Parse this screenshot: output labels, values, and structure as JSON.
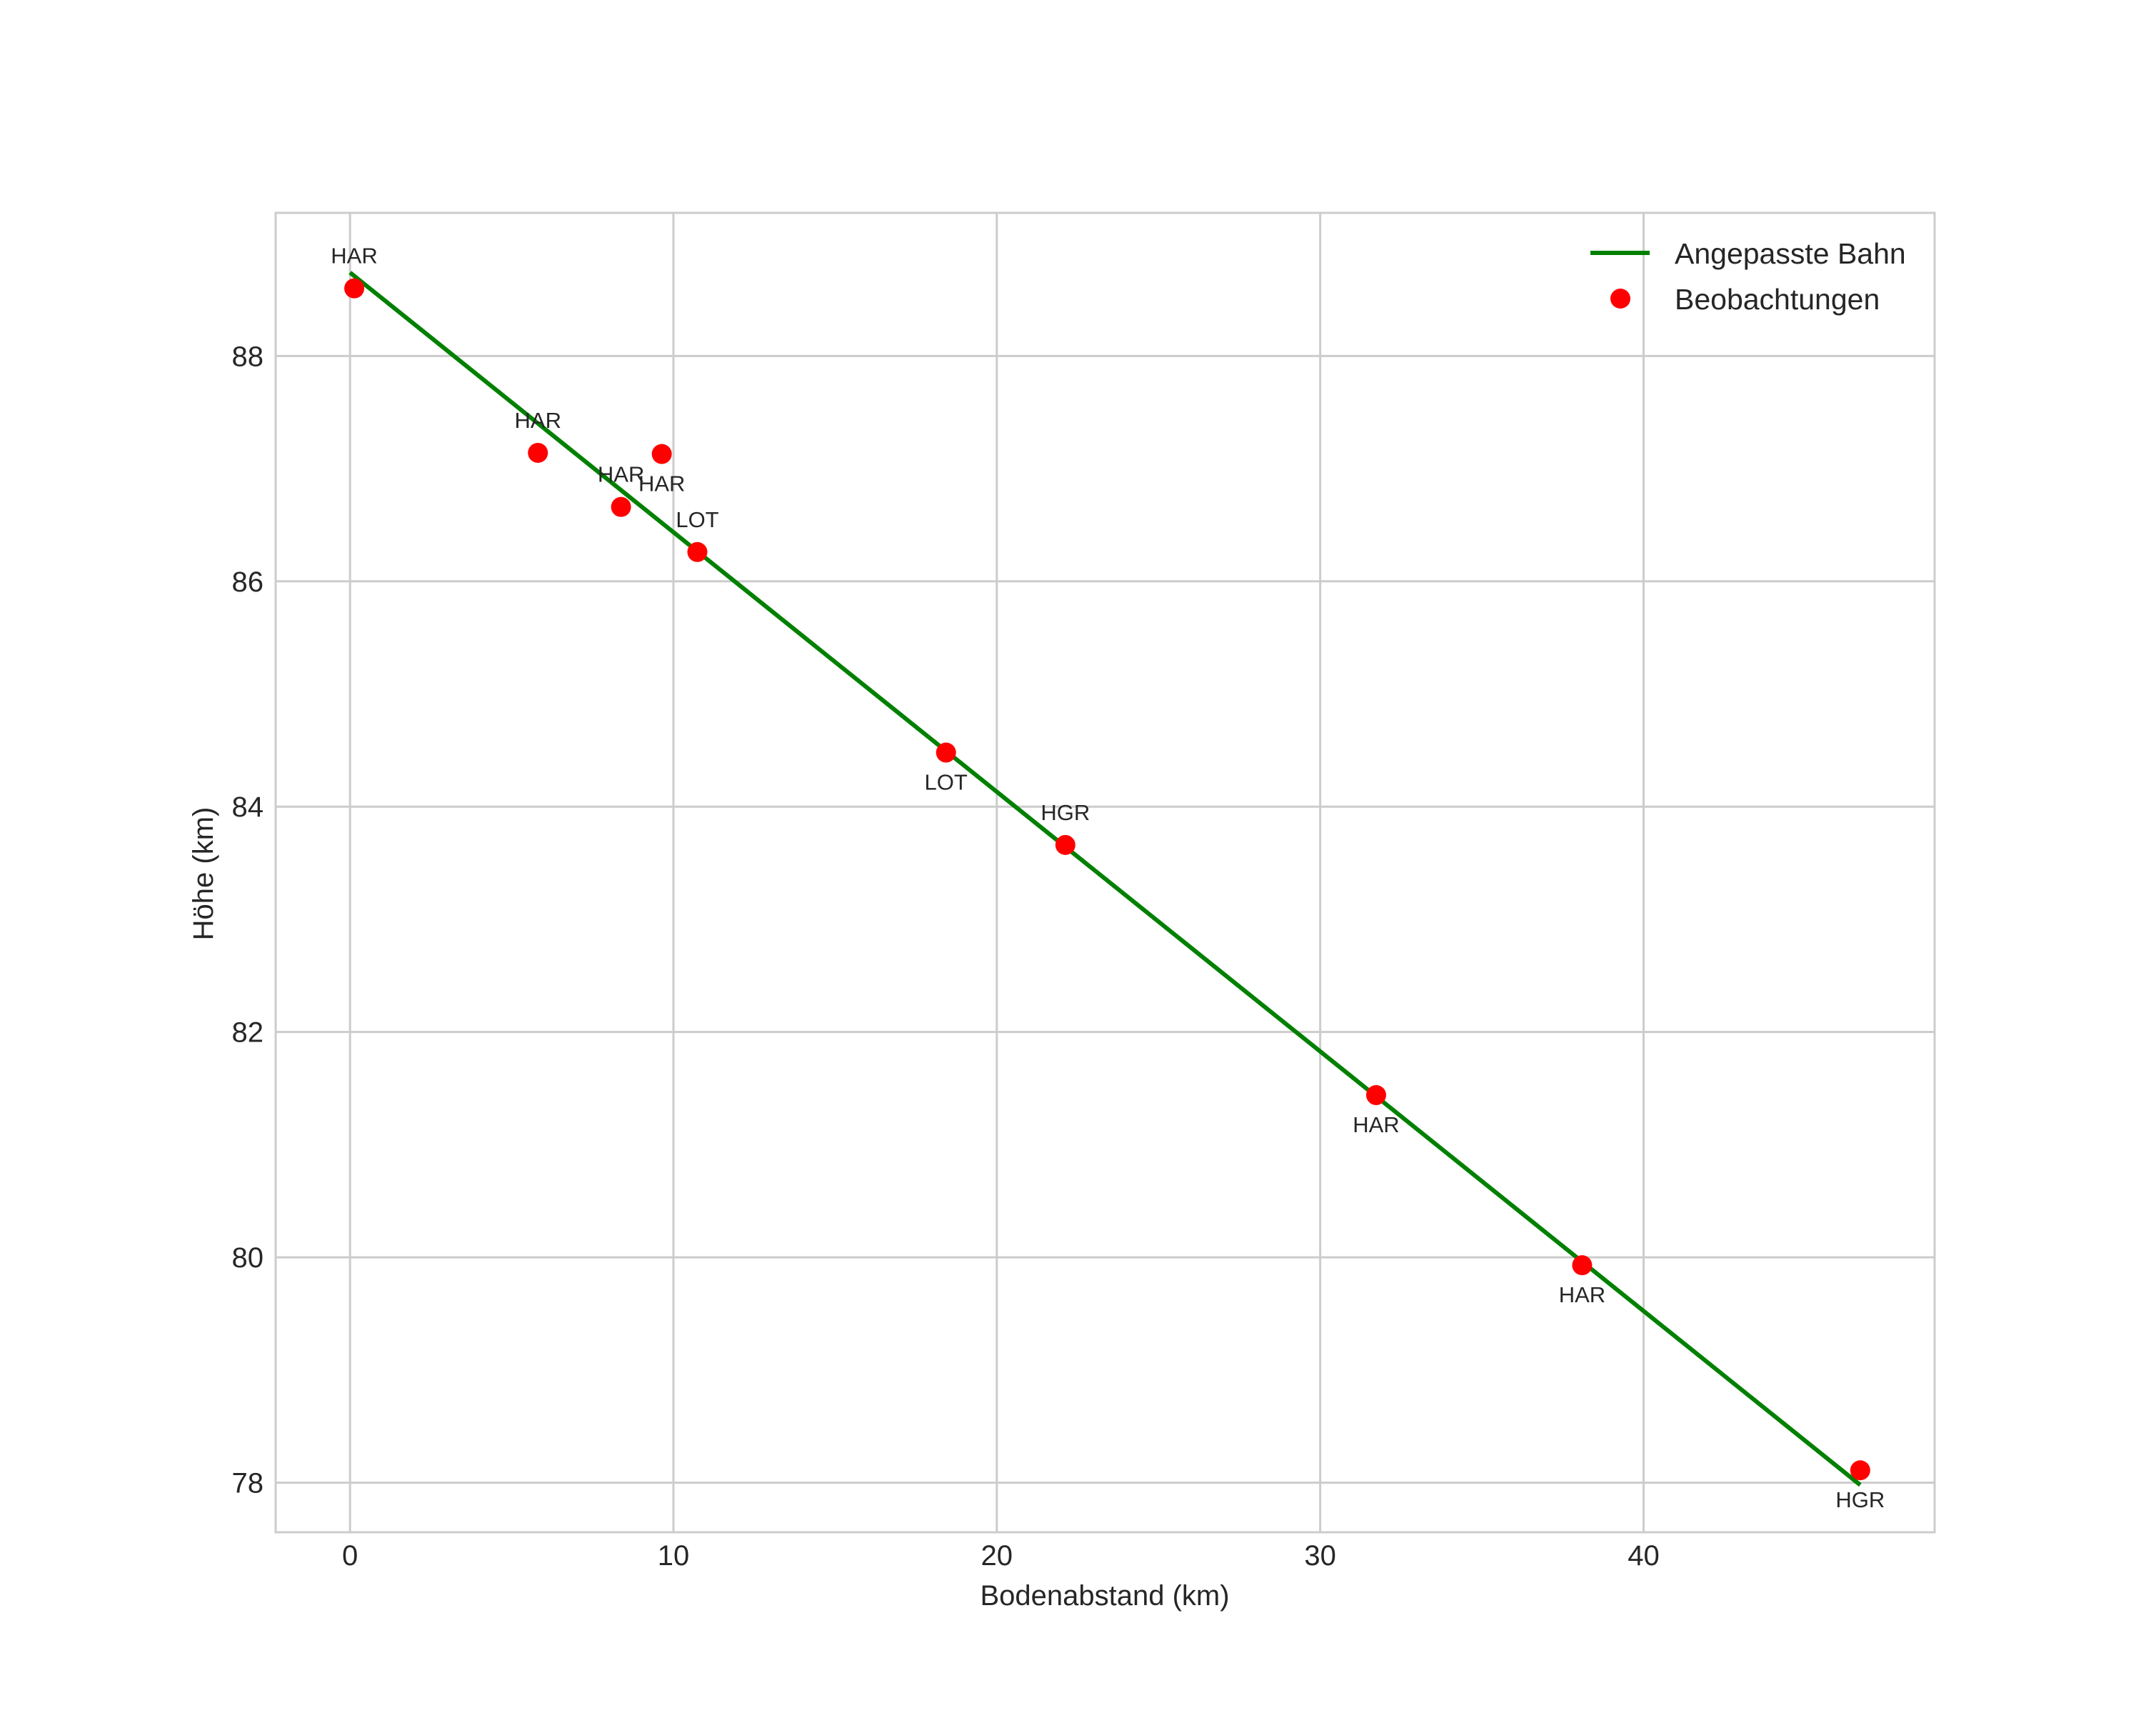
{
  "chart_data": {
    "type": "scatter",
    "title": "",
    "xlabel": "Bodenabstand (km)",
    "ylabel": "Höhe (km)",
    "xlim": [
      -2.3,
      49.0
    ],
    "ylim": [
      77.56,
      89.27
    ],
    "grid": true,
    "legend_position": "upper right",
    "xticks": [
      0,
      10,
      20,
      30,
      40
    ],
    "yticks": [
      78,
      80,
      82,
      84,
      86,
      88
    ],
    "series": [
      {
        "name": "Angepasste Bahn",
        "kind": "line",
        "color": "#008000",
        "x": [
          0.0,
          46.7
        ],
        "y": [
          88.74,
          77.98
        ]
      },
      {
        "name": "Beobachtungen",
        "kind": "scatter",
        "color": "#ff0000",
        "points": [
          {
            "x": 0.13,
            "y": 88.6,
            "label": "HAR",
            "label_pos": "above"
          },
          {
            "x": 5.81,
            "y": 87.14,
            "label": "HAR",
            "label_pos": "above"
          },
          {
            "x": 8.38,
            "y": 86.66,
            "label": "HAR",
            "label_pos": "above"
          },
          {
            "x": 9.64,
            "y": 87.13,
            "label": "HAR",
            "label_pos": "below"
          },
          {
            "x": 10.74,
            "y": 86.26,
            "label": "LOT",
            "label_pos": "above"
          },
          {
            "x": 18.43,
            "y": 84.48,
            "label": "LOT",
            "label_pos": "below"
          },
          {
            "x": 22.12,
            "y": 83.66,
            "label": "HGR",
            "label_pos": "above"
          },
          {
            "x": 31.73,
            "y": 81.44,
            "label": "HAR",
            "label_pos": "below"
          },
          {
            "x": 38.1,
            "y": 79.93,
            "label": "HAR",
            "label_pos": "below"
          },
          {
            "x": 46.7,
            "y": 78.11,
            "label": "HGR",
            "label_pos": "below"
          }
        ]
      }
    ]
  },
  "legend": {
    "items": [
      {
        "label": "Angepasste Bahn",
        "marker": "line",
        "color": "#008000"
      },
      {
        "label": "Beobachtungen",
        "marker": "dot",
        "color": "#ff0000"
      }
    ]
  },
  "colors": {
    "grid": "#cccccc",
    "spine": "#cccccc",
    "text": "#262626",
    "background": "#ffffff"
  }
}
